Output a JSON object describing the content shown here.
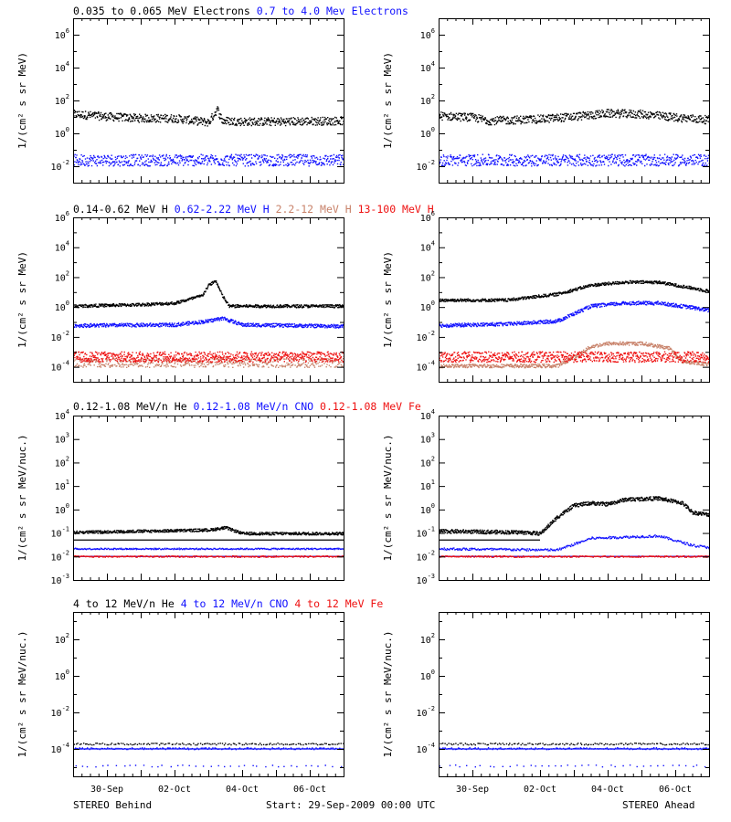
{
  "colors": {
    "black": "#000000",
    "blue": "#1010ff",
    "tan": "#c8826a",
    "red": "#ee1111"
  },
  "footer": {
    "left": "STEREO Behind",
    "center": "Start: 29-Sep-2009 00:00 UTC",
    "right": "STEREO Ahead"
  },
  "x_axis": {
    "range_days": [
      0,
      8
    ],
    "ticks": [
      {
        "day": 1,
        "label": "30-Sep"
      },
      {
        "day": 3,
        "label": "02-Oct"
      },
      {
        "day": 5,
        "label": "04-Oct"
      },
      {
        "day": 7,
        "label": "06-Oct"
      }
    ]
  },
  "chart_data": [
    {
      "id": "electrons-behind",
      "type": "scatter",
      "ylabel": "1/(cm² s sr MeV)",
      "y_scale": "log",
      "ylim_exp": [
        -3,
        7
      ],
      "tick_exps": [
        -2,
        0,
        2,
        4,
        6
      ],
      "titles": [
        {
          "text": "0.035 to 0.065 MeV Electrons",
          "color": "black"
        },
        {
          "text": "0.7 to 4.0 Mev Electrons",
          "color": "blue"
        }
      ],
      "series": [
        {
          "color": "black",
          "n": 650,
          "spread": 0.25,
          "base": [
            [
              0,
              1.2
            ],
            [
              1,
              1.05
            ],
            [
              2,
              0.95
            ],
            [
              3,
              0.95
            ],
            [
              4,
              0.7
            ],
            [
              4.25,
              1.5
            ],
            [
              4.4,
              0.8
            ],
            [
              5,
              0.75
            ],
            [
              6,
              0.75
            ],
            [
              8,
              0.8
            ]
          ]
        },
        {
          "color": "blue",
          "n": 650,
          "spread": 0.35,
          "base": [
            [
              0,
              -1.6
            ],
            [
              8,
              -1.6
            ]
          ]
        }
      ]
    },
    {
      "id": "electrons-ahead",
      "type": "scatter",
      "ylabel": "1/(cm² s sr MeV)",
      "y_scale": "log",
      "ylim_exp": [
        -3,
        7
      ],
      "tick_exps": [
        -2,
        0,
        2,
        4,
        6
      ],
      "titles": [],
      "series": [
        {
          "color": "black",
          "n": 650,
          "spread": 0.25,
          "base": [
            [
              0,
              1.1
            ],
            [
              1,
              1.0
            ],
            [
              1.5,
              0.8
            ],
            [
              3,
              0.9
            ],
            [
              4,
              1.05
            ],
            [
              5,
              1.25
            ],
            [
              6,
              1.2
            ],
            [
              7,
              1.0
            ],
            [
              8,
              0.85
            ]
          ]
        },
        {
          "color": "blue",
          "n": 650,
          "spread": 0.35,
          "base": [
            [
              0,
              -1.6
            ],
            [
              8,
              -1.6
            ]
          ]
        }
      ]
    },
    {
      "id": "protons-behind",
      "type": "scatter",
      "ylabel": "1/(cm² s sr MeV)",
      "y_scale": "log",
      "ylim_exp": [
        -5,
        6
      ],
      "tick_exps": [
        -4,
        -2,
        0,
        2,
        4,
        6
      ],
      "titles": [
        {
          "text": "0.14-0.62 MeV H",
          "color": "black"
        },
        {
          "text": "0.62-2.22 MeV H",
          "color": "blue"
        },
        {
          "text": "2.2-12 MeV H",
          "color": "tan"
        },
        {
          "text": "13-100 MeV H",
          "color": "red"
        }
      ],
      "series": [
        {
          "color": "tan",
          "n": 500,
          "spread": 0.3,
          "base": [
            [
              0,
              -3.7
            ],
            [
              8,
              -3.7
            ]
          ]
        },
        {
          "color": "red",
          "n": 800,
          "spread": 0.35,
          "base": [
            [
              0,
              -3.3
            ],
            [
              8,
              -3.3
            ]
          ]
        },
        {
          "color": "blue",
          "n": 650,
          "spread": 0.12,
          "base": [
            [
              0,
              -1.2
            ],
            [
              3,
              -1.15
            ],
            [
              4,
              -0.9
            ],
            [
              4.4,
              -0.7
            ],
            [
              5,
              -1.15
            ],
            [
              8,
              -1.25
            ]
          ]
        },
        {
          "color": "black",
          "n": 650,
          "spread": 0.1,
          "base": [
            [
              0,
              0.1
            ],
            [
              2,
              0.2
            ],
            [
              3,
              0.3
            ],
            [
              3.8,
              0.8
            ],
            [
              4,
              1.5
            ],
            [
              4.2,
              1.8
            ],
            [
              4.4,
              0.8
            ],
            [
              4.6,
              0.1
            ],
            [
              8,
              0.1
            ]
          ]
        }
      ]
    },
    {
      "id": "protons-ahead",
      "type": "scatter",
      "ylabel": "1/(cm² s sr MeV)",
      "y_scale": "log",
      "ylim_exp": [
        -5,
        6
      ],
      "tick_exps": [
        -4,
        -2,
        0,
        2,
        4,
        6
      ],
      "titles": [],
      "series": [
        {
          "color": "tan",
          "n": 600,
          "spread": 0.12,
          "base": [
            [
              0,
              -3.9
            ],
            [
              3.5,
              -3.9
            ],
            [
              4,
              -3.3
            ],
            [
              4.5,
              -2.6
            ],
            [
              5,
              -2.4
            ],
            [
              6,
              -2.4
            ],
            [
              6.8,
              -2.7
            ],
            [
              7.2,
              -3.6
            ],
            [
              8,
              -3.8
            ]
          ]
        },
        {
          "color": "red",
          "n": 800,
          "spread": 0.35,
          "base": [
            [
              0,
              -3.3
            ],
            [
              8,
              -3.3
            ]
          ]
        },
        {
          "color": "blue",
          "n": 650,
          "spread": 0.12,
          "base": [
            [
              0,
              -1.2
            ],
            [
              2,
              -1.1
            ],
            [
              3.5,
              -0.9
            ],
            [
              4.5,
              0.1
            ],
            [
              5.5,
              0.3
            ],
            [
              6.5,
              0.3
            ],
            [
              7.5,
              0.0
            ],
            [
              8,
              -0.2
            ]
          ]
        },
        {
          "color": "black",
          "n": 650,
          "spread": 0.1,
          "base": [
            [
              0,
              0.5
            ],
            [
              2,
              0.5
            ],
            [
              3.5,
              0.9
            ],
            [
              4.5,
              1.5
            ],
            [
              5.5,
              1.7
            ],
            [
              6.5,
              1.7
            ],
            [
              7.5,
              1.3
            ],
            [
              8,
              1.1
            ]
          ]
        }
      ]
    },
    {
      "id": "heavy-low-behind",
      "type": "scatter",
      "ylabel": "1/(cm² s sr MeV/nuc.)",
      "y_scale": "log",
      "ylim_exp": [
        -3,
        4
      ],
      "tick_exps": [
        -3,
        -2,
        -1,
        0,
        1,
        2,
        3,
        4
      ],
      "titles": [
        {
          "text": "0.12-1.08 MeV/n He",
          "color": "black"
        },
        {
          "text": "0.12-1.08 MeV/n CNO",
          "color": "blue"
        },
        {
          "text": "0.12-1.08 MeV Fe",
          "color": "red"
        }
      ],
      "lines": [
        {
          "color": "black",
          "exp": -1.3
        },
        {
          "color": "red",
          "exp": -2.0
        },
        {
          "color": "blue",
          "exp": -2.0
        }
      ],
      "series": [
        {
          "color": "black",
          "n": 700,
          "spread": 0.06,
          "base": [
            [
              0,
              -0.95
            ],
            [
              4,
              -0.85
            ],
            [
              4.5,
              -0.75
            ],
            [
              5,
              -1.0
            ],
            [
              8,
              -1.0
            ]
          ]
        },
        {
          "color": "blue",
          "n": 350,
          "spread": 0.03,
          "base": [
            [
              0,
              -1.65
            ],
            [
              8,
              -1.65
            ]
          ]
        },
        {
          "color": "red",
          "n": 300,
          "spread": 0.03,
          "base": [
            [
              0,
              -1.98
            ],
            [
              8,
              -1.98
            ]
          ]
        }
      ]
    },
    {
      "id": "heavy-low-ahead",
      "type": "scatter",
      "ylabel": "1/(cm² s sr MeV/nuc.)",
      "y_scale": "log",
      "ylim_exp": [
        -3,
        4
      ],
      "tick_exps": [
        -3,
        -2,
        -1,
        0,
        1,
        2,
        3,
        4
      ],
      "titles": [],
      "lines": [
        {
          "color": "black",
          "exp": -1.3,
          "x0": 0,
          "x1": 3
        },
        {
          "color": "red",
          "exp": -2.0
        },
        {
          "color": "blue",
          "exp": -2.0
        }
      ],
      "series": [
        {
          "color": "black",
          "n": 750,
          "spread": 0.08,
          "base": [
            [
              0,
              -0.9
            ],
            [
              2.5,
              -0.95
            ],
            [
              3,
              -1.0
            ],
            [
              3.5,
              -0.3
            ],
            [
              4,
              0.2
            ],
            [
              4.5,
              0.3
            ],
            [
              5,
              0.25
            ],
            [
              5.5,
              0.45
            ],
            [
              6.5,
              0.5
            ],
            [
              7.2,
              0.3
            ],
            [
              7.5,
              -0.1
            ],
            [
              8,
              -0.2
            ]
          ]
        },
        {
          "color": "blue",
          "n": 350,
          "spread": 0.05,
          "base": [
            [
              0,
              -1.65
            ],
            [
              3.5,
              -1.7
            ],
            [
              4.5,
              -1.2
            ],
            [
              6.5,
              -1.1
            ],
            [
              7.5,
              -1.5
            ],
            [
              8,
              -1.6
            ]
          ]
        },
        {
          "color": "red",
          "n": 300,
          "spread": 0.03,
          "base": [
            [
              0,
              -1.98
            ],
            [
              8,
              -1.98
            ]
          ]
        }
      ]
    },
    {
      "id": "heavy-high-behind",
      "type": "scatter",
      "ylabel": "1/(cm² s sr MeV/nuc.)",
      "y_scale": "log",
      "ylim_exp": [
        -5.5,
        3.5
      ],
      "tick_exps": [
        -4,
        -2,
        0,
        2
      ],
      "titles": [
        {
          "text": "4 to 12 MeV/n He",
          "color": "black"
        },
        {
          "text": "4 to 12 MeV/n CNO",
          "color": "blue"
        },
        {
          "text": "4 to 12 MeV Fe",
          "color": "red"
        }
      ],
      "lines": [
        {
          "color": "blue",
          "exp": -4.0
        }
      ],
      "series": [
        {
          "color": "black",
          "n": 150,
          "spread": 0.05,
          "base": [
            [
              0,
              -3.7
            ],
            [
              8,
              -3.7
            ]
          ]
        },
        {
          "color": "blue",
          "n": 160,
          "spread": 0.05,
          "base": [
            [
              0,
              -3.95
            ],
            [
              8,
              -3.95
            ]
          ]
        },
        {
          "color": "blue",
          "n": 40,
          "spread": 0.05,
          "base": [
            [
              0,
              -4.9
            ],
            [
              8,
              -4.9
            ]
          ]
        }
      ]
    },
    {
      "id": "heavy-high-ahead",
      "type": "scatter",
      "ylabel": "1/(cm² s sr MeV/nuc.)",
      "y_scale": "log",
      "ylim_exp": [
        -5.5,
        3.5
      ],
      "tick_exps": [
        -4,
        -2,
        0,
        2
      ],
      "titles": [],
      "lines": [
        {
          "color": "blue",
          "exp": -4.0
        }
      ],
      "series": [
        {
          "color": "black",
          "n": 150,
          "spread": 0.05,
          "base": [
            [
              0,
              -3.7
            ],
            [
              8,
              -3.7
            ]
          ]
        },
        {
          "color": "blue",
          "n": 160,
          "spread": 0.05,
          "base": [
            [
              0,
              -3.95
            ],
            [
              8,
              -3.95
            ]
          ]
        },
        {
          "color": "blue",
          "n": 40,
          "spread": 0.05,
          "base": [
            [
              0,
              -4.9
            ],
            [
              8,
              -4.9
            ]
          ]
        }
      ]
    }
  ]
}
